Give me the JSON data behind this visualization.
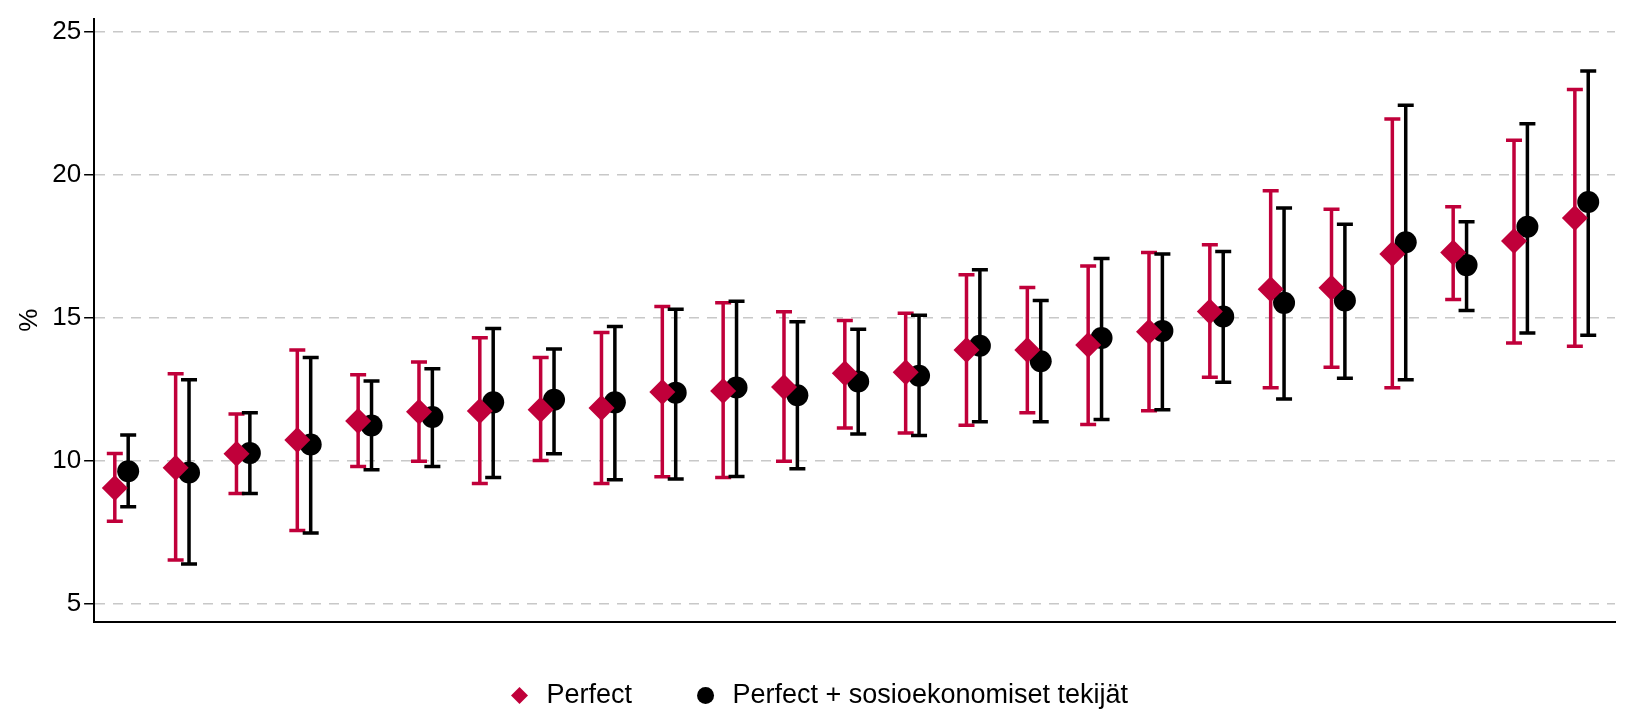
{
  "chart_data": {
    "type": "scatter",
    "ylabel": "%",
    "categories": [
      null,
      null,
      null,
      null,
      null,
      null,
      null,
      null,
      null,
      null,
      null,
      null,
      null,
      null,
      null,
      null,
      null,
      null,
      null,
      null,
      null,
      null,
      null,
      null,
      null
    ],
    "series": [
      {
        "name": "Perfect",
        "color": "#c0003a",
        "marker": "diamond",
        "values": [
          9.04,
          9.74,
          10.23,
          10.71,
          11.38,
          11.7,
          11.73,
          11.77,
          11.83,
          12.39,
          12.43,
          12.57,
          13.05,
          13.08,
          13.86,
          13.86,
          14.04,
          14.5,
          15.21,
          15.99,
          16.04,
          17.22,
          17.27,
          17.67,
          18.48
        ],
        "errors": [
          [
            7.87,
            10.24
          ],
          [
            6.52,
            13.03
          ],
          [
            8.84,
            11.62
          ],
          [
            7.55,
            13.86
          ],
          [
            9.79,
            13.0
          ],
          [
            9.97,
            13.44
          ],
          [
            9.19,
            14.29
          ],
          [
            10.0,
            13.6
          ],
          [
            9.19,
            14.47
          ],
          [
            9.43,
            15.38
          ],
          [
            9.4,
            15.51
          ],
          [
            9.97,
            15.2
          ],
          [
            11.13,
            14.89
          ],
          [
            10.96,
            15.15
          ],
          [
            11.23,
            16.49
          ],
          [
            11.67,
            16.05
          ],
          [
            11.26,
            16.8
          ],
          [
            11.74,
            17.27
          ],
          [
            12.91,
            17.54
          ],
          [
            12.54,
            19.43
          ],
          [
            13.26,
            18.78
          ],
          [
            12.54,
            21.94
          ],
          [
            15.63,
            18.87
          ],
          [
            14.11,
            21.2
          ],
          [
            13.99,
            22.97
          ]
        ]
      },
      {
        "name": "Perfect + sosioekonomiset tekijät",
        "color": "#000000",
        "marker": "circle",
        "values": [
          9.62,
          9.58,
          10.26,
          10.56,
          11.22,
          11.52,
          12.03,
          12.12,
          12.03,
          12.37,
          12.55,
          12.28,
          12.76,
          12.96,
          14.01,
          13.47,
          14.28,
          14.53,
          15.03,
          15.51,
          15.59,
          17.63,
          16.83,
          18.17,
          19.04
        ],
        "errors": [
          [
            8.38,
            10.89
          ],
          [
            6.38,
            12.82
          ],
          [
            8.84,
            11.67
          ],
          [
            7.46,
            13.6
          ],
          [
            9.67,
            12.78
          ],
          [
            9.79,
            13.21
          ],
          [
            9.4,
            14.61
          ],
          [
            10.23,
            13.9
          ],
          [
            9.32,
            14.68
          ],
          [
            9.35,
            15.29
          ],
          [
            9.44,
            15.57
          ],
          [
            9.71,
            14.85
          ],
          [
            10.92,
            14.59
          ],
          [
            10.87,
            15.08
          ],
          [
            11.35,
            16.67
          ],
          [
            11.35,
            15.59
          ],
          [
            11.43,
            17.06
          ],
          [
            11.77,
            17.22
          ],
          [
            12.73,
            17.31
          ],
          [
            12.15,
            18.83
          ],
          [
            12.87,
            18.26
          ],
          [
            12.82,
            22.42
          ],
          [
            15.24,
            18.35
          ],
          [
            14.46,
            21.77
          ],
          [
            14.38,
            23.62
          ]
        ]
      }
    ],
    "ylim": [
      4.35,
      25.45
    ],
    "yticks": [
      5,
      10,
      15,
      20,
      25
    ],
    "grid": "y",
    "legend": "bottom"
  }
}
